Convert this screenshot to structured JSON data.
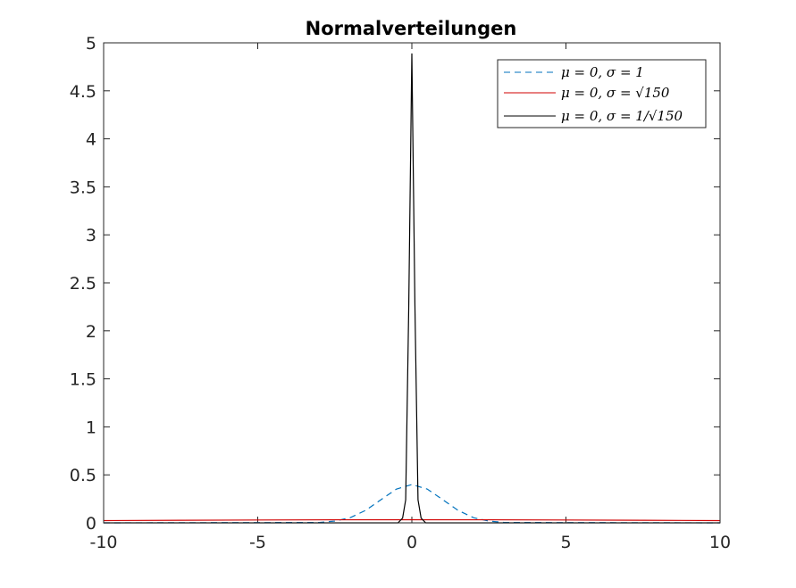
{
  "chart_data": {
    "type": "line",
    "title": "Normalverteilungen",
    "xlabel": "",
    "ylabel": "",
    "xlim": [
      -10,
      10
    ],
    "ylim": [
      0,
      5
    ],
    "xticks": [
      -10,
      -5,
      0,
      5,
      10
    ],
    "xtick_labels": [
      "-10",
      "-5",
      "0",
      "5",
      "10"
    ],
    "yticks": [
      0,
      0.5,
      1,
      1.5,
      2,
      2.5,
      3,
      3.5,
      4,
      4.5,
      5
    ],
    "ytick_labels": [
      "0",
      "0.5",
      "1",
      "1.5",
      "2",
      "2.5",
      "3",
      "3.5",
      "4",
      "4.5",
      "5"
    ],
    "grid": false,
    "legend_position": "top-right",
    "series": [
      {
        "name": "μ = 0, σ = 1",
        "color": "#0072BD",
        "style": "dashed",
        "x": [
          -10,
          -3,
          -2.5,
          -2,
          -1.5,
          -1,
          -0.5,
          0,
          0.5,
          1,
          1.5,
          2,
          2.5,
          3,
          10
        ],
        "y": [
          0,
          0.004,
          0.018,
          0.054,
          0.13,
          0.242,
          0.352,
          0.399,
          0.352,
          0.242,
          0.13,
          0.054,
          0.018,
          0.004,
          0
        ]
      },
      {
        "name": "μ = 0, σ = √150",
        "color": "#D00000",
        "style": "solid",
        "x": [
          -10,
          -7.5,
          -5,
          -2.5,
          0,
          2.5,
          5,
          7.5,
          10
        ],
        "y": [
          0.0234,
          0.0269,
          0.0296,
          0.0318,
          0.0326,
          0.0318,
          0.0296,
          0.0269,
          0.0234
        ]
      },
      {
        "name": "μ = 0, σ = 1/√150",
        "color": "#000000",
        "style": "solid",
        "x": [
          -10,
          -0.45,
          -0.3,
          -0.2,
          -0.1,
          0,
          0.1,
          0.2,
          0.3,
          0.45,
          10
        ],
        "y": [
          0,
          0,
          0.05,
          0.24,
          2.26,
          4.89,
          2.26,
          0.24,
          0.05,
          0,
          0
        ]
      }
    ]
  }
}
